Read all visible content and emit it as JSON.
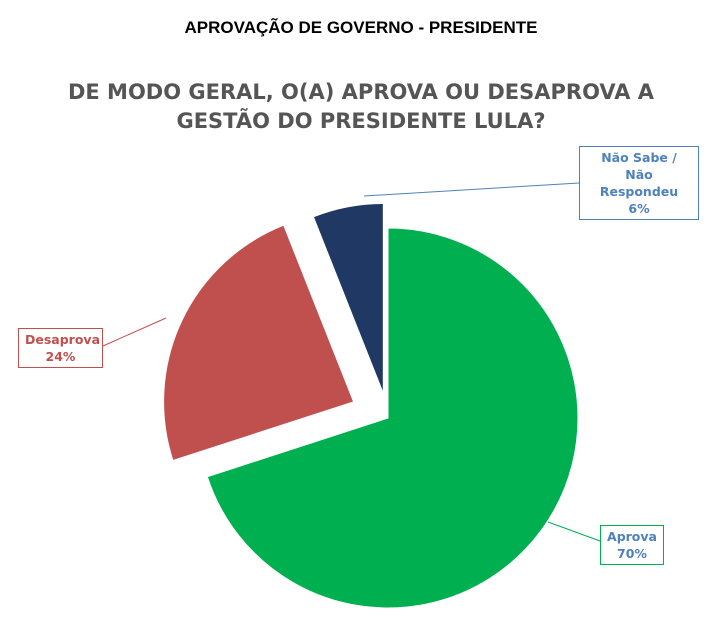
{
  "header": "APROVAÇÃO DE GOVERNO - PRESIDENTE",
  "chart_data": {
    "type": "pie",
    "title": "DE MODO GERAL, O(A) APROVA OU DESAPROVA A GESTÃO DO PRESIDENTE LULA?",
    "slices": [
      {
        "name": "Aprova",
        "value": 70,
        "label": "70%",
        "color": "#00b050",
        "label_color": "#4f81bd"
      },
      {
        "name": "Desaprova",
        "value": 24,
        "label": "24%",
        "color": "#c0504d",
        "label_color": "#c0504d"
      },
      {
        "name": "Não Sabe / Não Respondeu",
        "name_lines": [
          "Não Sabe / Não",
          "Respondeu"
        ],
        "value": 6,
        "label": "6%",
        "color": "#1f3864",
        "label_color": "#4f81bd"
      }
    ],
    "legend": "none",
    "exploded": true
  }
}
